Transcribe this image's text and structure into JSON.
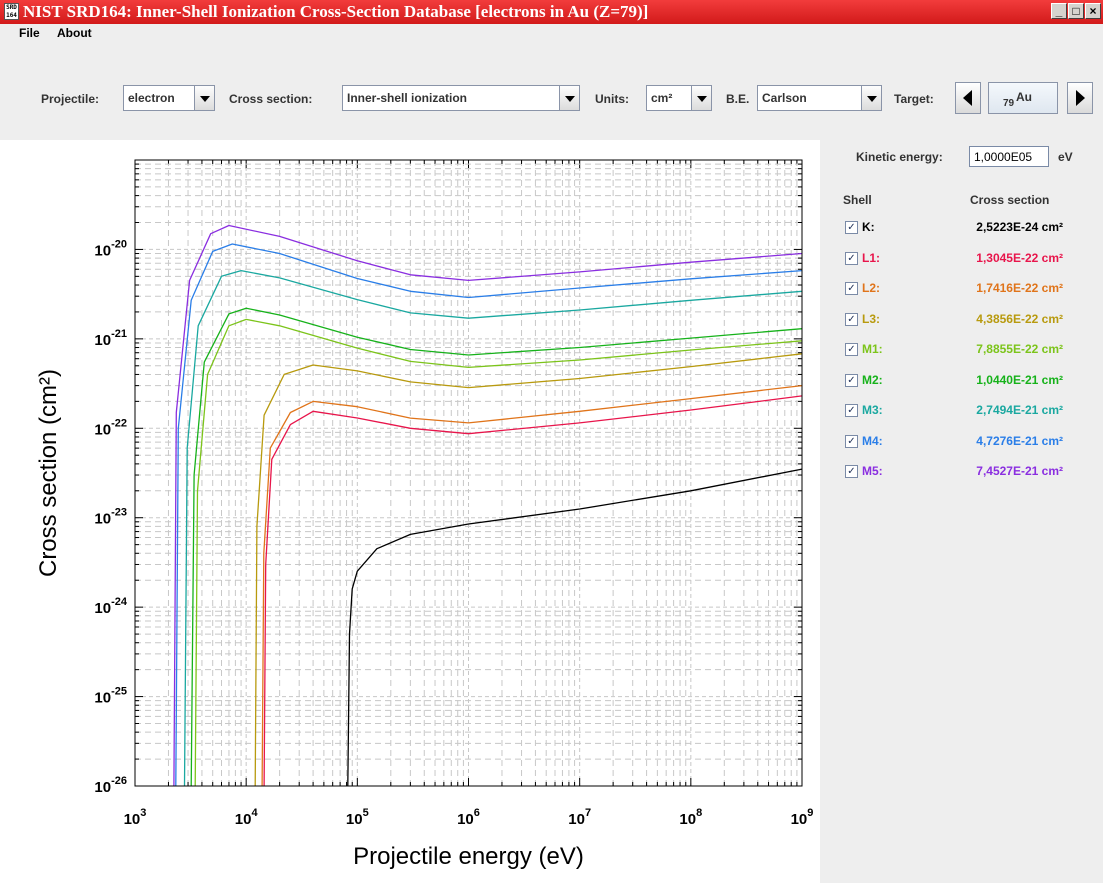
{
  "window": {
    "title": "NIST SRD164: Inner-Shell Ionization Cross-Section Database [electrons in Au (Z=79)]",
    "icon_text": "SRD 164",
    "min_label": "_",
    "max_label": "□",
    "close_label": "×"
  },
  "menu": {
    "file": "File",
    "about": "About"
  },
  "toolbar": {
    "projectile_label": "Projectile:",
    "projectile_value": "electron",
    "cross_section_label": "Cross section:",
    "cross_section_value": "Inner-shell ionization",
    "units_label": "Units:",
    "units_value": "cm²",
    "be_label": "B.E.",
    "be_value": "Carlson",
    "target_label": "Target:",
    "target_z": "79",
    "target_symbol": "Au"
  },
  "panel": {
    "kinetic_energy_label": "Kinetic energy:",
    "kinetic_energy_value": "1,0000E05",
    "kinetic_energy_unit": "eV",
    "shell_header": "Shell",
    "cross_section_header": "Cross section",
    "shells": [
      {
        "name": "K:",
        "value": "2,5223E-24 cm²",
        "color": "#000000",
        "checked": true
      },
      {
        "name": "L1:",
        "value": "1,3045E-22 cm²",
        "color": "#e8154b",
        "checked": true
      },
      {
        "name": "L2:",
        "value": "1,7416E-22 cm²",
        "color": "#e0741a",
        "checked": true
      },
      {
        "name": "L3:",
        "value": "4,3856E-22 cm²",
        "color": "#b89a0e",
        "checked": true
      },
      {
        "name": "M1:",
        "value": "7,8855E-22 cm²",
        "color": "#7cc41a",
        "checked": true
      },
      {
        "name": "M2:",
        "value": "1,0440E-21 cm²",
        "color": "#16b21a",
        "checked": true
      },
      {
        "name": "M3:",
        "value": "2,7494E-21 cm²",
        "color": "#1aa8a0",
        "checked": true
      },
      {
        "name": "M4:",
        "value": "4,7276E-21 cm²",
        "color": "#2a7ee8",
        "checked": true
      },
      {
        "name": "M5:",
        "value": "7,4527E-21 cm²",
        "color": "#8a2ee0",
        "checked": true
      }
    ]
  },
  "chart_data": {
    "type": "line",
    "xlabel": "Projectile energy (eV)",
    "ylabel": "Cross section (cm²)",
    "x_scale": "log",
    "y_scale": "log",
    "xlim": [
      1000,
      1000000000
    ],
    "ylim": [
      1e-26,
      1e-19
    ],
    "grid": true,
    "x_ticks": [
      {
        "base": "10",
        "exp": "3"
      },
      {
        "base": "10",
        "exp": "4"
      },
      {
        "base": "10",
        "exp": "5"
      },
      {
        "base": "10",
        "exp": "6"
      },
      {
        "base": "10",
        "exp": "7"
      },
      {
        "base": "10",
        "exp": "8"
      },
      {
        "base": "10",
        "exp": "9"
      }
    ],
    "y_ticks": [
      {
        "base": "10",
        "exp": "-26"
      },
      {
        "base": "10",
        "exp": "-25"
      },
      {
        "base": "10",
        "exp": "-24"
      },
      {
        "base": "10",
        "exp": "-23"
      },
      {
        "base": "10",
        "exp": "-22"
      },
      {
        "base": "10",
        "exp": "-21"
      },
      {
        "base": "10",
        "exp": "-20"
      }
    ],
    "series": [
      {
        "name": "K",
        "color": "#000000",
        "threshold": 80725,
        "points": [
          [
            82000,
            1e-26
          ],
          [
            85000,
            5e-25
          ],
          [
            90000,
            1.6e-24
          ],
          [
            100000,
            2.52e-24
          ],
          [
            150000,
            4.5e-24
          ],
          [
            300000,
            6.5e-24
          ],
          [
            1000000,
            8.5e-24
          ],
          [
            10000000,
            1.25e-23
          ],
          [
            100000000,
            2e-23
          ],
          [
            1000000000,
            3.5e-23
          ]
        ]
      },
      {
        "name": "L1",
        "color": "#e8154b",
        "threshold": 14353,
        "points": [
          [
            14500,
            1e-26
          ],
          [
            15000,
            3e-24
          ],
          [
            17000,
            4.5e-23
          ],
          [
            25000,
            1.1e-22
          ],
          [
            40000,
            1.55e-22
          ],
          [
            100000,
            1.3045e-22
          ],
          [
            300000,
            1e-22
          ],
          [
            1000000,
            8.7e-23
          ],
          [
            10000000,
            1.15e-22
          ],
          [
            100000000,
            1.6e-22
          ],
          [
            1000000000,
            2.3e-22
          ]
        ]
      },
      {
        "name": "L2",
        "color": "#e0741a",
        "threshold": 13734,
        "points": [
          [
            13900,
            1e-26
          ],
          [
            14400,
            4e-24
          ],
          [
            16500,
            6e-23
          ],
          [
            25000,
            1.5e-22
          ],
          [
            40000,
            2e-22
          ],
          [
            100000,
            1.7416e-22
          ],
          [
            300000,
            1.3e-22
          ],
          [
            1000000,
            1.15e-22
          ],
          [
            10000000,
            1.55e-22
          ],
          [
            100000000,
            2.15e-22
          ],
          [
            1000000000,
            3e-22
          ]
        ]
      },
      {
        "name": "L3",
        "color": "#b89a0e",
        "threshold": 11919,
        "points": [
          [
            12050,
            1e-26
          ],
          [
            12500,
            8e-24
          ],
          [
            14500,
            1.4e-22
          ],
          [
            22000,
            4e-22
          ],
          [
            40000,
            5.1e-22
          ],
          [
            100000,
            4.3856e-22
          ],
          [
            300000,
            3.3e-22
          ],
          [
            1000000,
            2.85e-22
          ],
          [
            10000000,
            3.6e-22
          ],
          [
            100000000,
            4.9e-22
          ],
          [
            1000000000,
            6.8e-22
          ]
        ]
      },
      {
        "name": "M1",
        "color": "#7cc41a",
        "threshold": 3425,
        "points": [
          [
            3480,
            1e-26
          ],
          [
            3650,
            2e-23
          ],
          [
            4500,
            4e-22
          ],
          [
            7000,
            1.4e-21
          ],
          [
            10000,
            1.65e-21
          ],
          [
            20000,
            1.4e-21
          ],
          [
            100000,
            7.8855e-22
          ],
          [
            300000,
            5.6e-22
          ],
          [
            1000000,
            4.8e-22
          ],
          [
            10000000,
            5.8e-22
          ],
          [
            100000000,
            7.5e-22
          ],
          [
            1000000000,
            9.5e-22
          ]
        ]
      },
      {
        "name": "M2",
        "color": "#16b21a",
        "threshold": 3148,
        "points": [
          [
            3200,
            1e-26
          ],
          [
            3400,
            3e-23
          ],
          [
            4200,
            5.5e-22
          ],
          [
            7000,
            1.9e-21
          ],
          [
            10000,
            2.2e-21
          ],
          [
            20000,
            1.85e-21
          ],
          [
            100000,
            1.044e-21
          ],
          [
            300000,
            7.6e-22
          ],
          [
            1000000,
            6.6e-22
          ],
          [
            10000000,
            8e-22
          ],
          [
            100000000,
            1.02e-21
          ],
          [
            1000000000,
            1.3e-21
          ]
        ]
      },
      {
        "name": "M3",
        "color": "#1aa8a0",
        "threshold": 2743,
        "points": [
          [
            2790,
            1e-26
          ],
          [
            2950,
            6e-23
          ],
          [
            3700,
            1.4e-21
          ],
          [
            6000,
            5e-21
          ],
          [
            9000,
            5.8e-21
          ],
          [
            20000,
            4.8e-21
          ],
          [
            100000,
            2.7494e-21
          ],
          [
            300000,
            1.95e-21
          ],
          [
            1000000,
            1.7e-21
          ],
          [
            10000000,
            2.1e-21
          ],
          [
            100000000,
            2.7e-21
          ],
          [
            1000000000,
            3.4e-21
          ]
        ]
      },
      {
        "name": "M4",
        "color": "#2a7ee8",
        "threshold": 2291,
        "points": [
          [
            2330,
            1e-26
          ],
          [
            2450,
            1e-22
          ],
          [
            3200,
            2.7e-21
          ],
          [
            5000,
            9.5e-21
          ],
          [
            7500,
            1.15e-20
          ],
          [
            20000,
            9e-21
          ],
          [
            100000,
            4.7276e-21
          ],
          [
            300000,
            3.4e-21
          ],
          [
            1000000,
            2.9e-21
          ],
          [
            10000000,
            3.7e-21
          ],
          [
            100000000,
            4.7e-21
          ],
          [
            1000000000,
            5.8e-21
          ]
        ]
      },
      {
        "name": "M5",
        "color": "#8a2ee0",
        "threshold": 2206,
        "points": [
          [
            2240,
            1e-26
          ],
          [
            2350,
            1.5e-22
          ],
          [
            3100,
            4.5e-21
          ],
          [
            4800,
            1.5e-20
          ],
          [
            7000,
            1.85e-20
          ],
          [
            20000,
            1.4e-20
          ],
          [
            100000,
            7.4527e-21
          ],
          [
            300000,
            5.2e-21
          ],
          [
            1000000,
            4.5e-21
          ],
          [
            10000000,
            5.6e-21
          ],
          [
            100000000,
            7.2e-21
          ],
          [
            1000000000,
            9e-21
          ]
        ]
      }
    ]
  }
}
